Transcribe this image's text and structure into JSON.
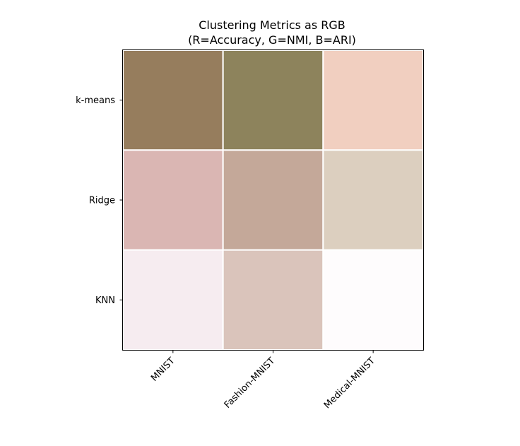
{
  "chart_data": {
    "type": "heatmap",
    "title_lines": [
      "Clustering Metrics as RGB",
      "(R=Accuracy, G=NMI, B=ARI)"
    ],
    "x_categories": [
      "MNIST",
      "Fashion-MNIST",
      "Medical-MNIST"
    ],
    "y_categories": [
      "k-means",
      "Ridge",
      "KNN"
    ],
    "channel_mapping": {
      "R": "Accuracy",
      "G": "NMI",
      "B": "ARI"
    },
    "cells": [
      [
        {
          "color": "#967d5d",
          "rgb": [
            0.59,
            0.49,
            0.36
          ]
        },
        {
          "color": "#8d835c",
          "rgb": [
            0.55,
            0.51,
            0.36
          ]
        },
        {
          "color": "#f1cfc0",
          "rgb": [
            0.95,
            0.81,
            0.75
          ]
        }
      ],
      [
        {
          "color": "#dab6b3",
          "rgb": [
            0.85,
            0.71,
            0.7
          ]
        },
        {
          "color": "#c4a899",
          "rgb": [
            0.77,
            0.66,
            0.6
          ]
        },
        {
          "color": "#dccfbf",
          "rgb": [
            0.86,
            0.81,
            0.75
          ]
        }
      ],
      [
        {
          "color": "#f6ecf0",
          "rgb": [
            0.96,
            0.93,
            0.94
          ]
        },
        {
          "color": "#dac4bb",
          "rgb": [
            0.85,
            0.77,
            0.73
          ]
        },
        {
          "color": "#fefcfd",
          "rgb": [
            1.0,
            0.99,
            0.99
          ]
        }
      ]
    ],
    "grid": false
  }
}
